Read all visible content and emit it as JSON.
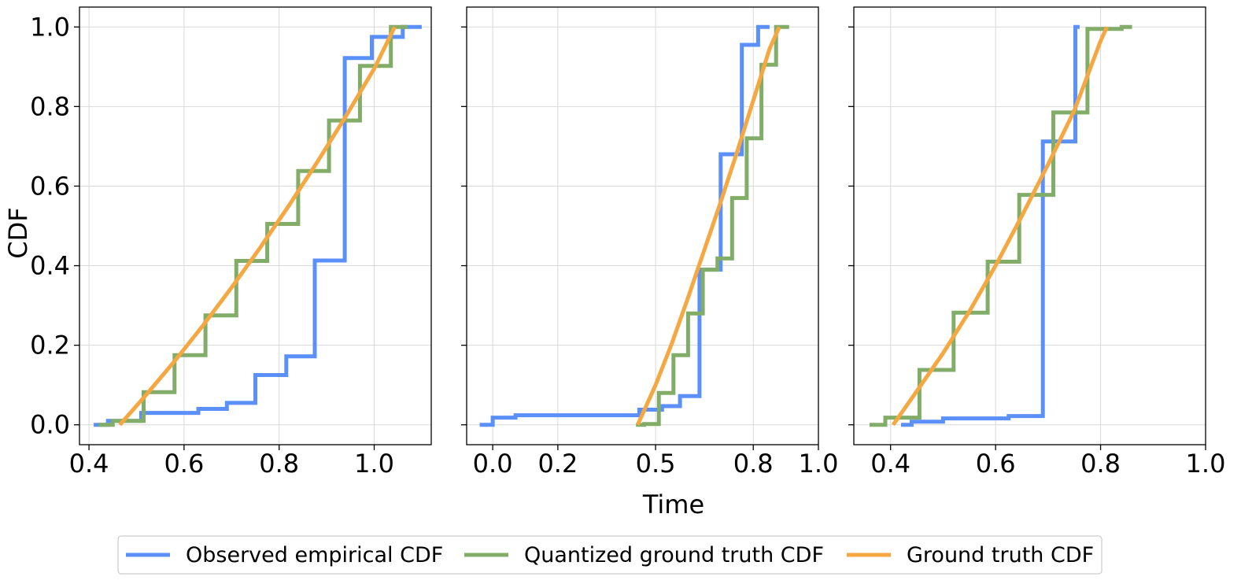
{
  "chart_data": {
    "type": "line",
    "style": "step",
    "xlabel": "Time",
    "ylabel": "CDF",
    "colors": {
      "observed": "#5B8FF9",
      "quantized": "#82AD68",
      "ground_truth": "#F5A742",
      "grid": "#d9d9d9",
      "axis": "#000000"
    },
    "legend": {
      "position": "bottom-center",
      "entries": [
        {
          "key": "observed",
          "label": "Observed empirical CDF"
        },
        {
          "key": "quantized",
          "label": "Quantized ground truth CDF"
        },
        {
          "key": "ground_truth",
          "label": "Ground truth CDF"
        }
      ]
    },
    "panels": [
      {
        "xlim": [
          0.38,
          1.12
        ],
        "ylim": [
          -0.05,
          1.05
        ],
        "xticks": [
          "0.4",
          "0.6",
          "0.8",
          "1.0"
        ],
        "yticks": [
          "0.0",
          "0.2",
          "0.4",
          "0.6",
          "0.8",
          "1.0"
        ],
        "series": [
          {
            "key": "observed",
            "name": "Observed empirical CDF",
            "x": [
              0.41,
              0.44,
              0.51,
              0.63,
              0.69,
              0.75,
              0.815,
              0.875,
              0.938,
              0.995,
              1.06,
              1.1
            ],
            "y": [
              0.0,
              0.01,
              0.03,
              0.04,
              0.055,
              0.125,
              0.172,
              0.413,
              0.922,
              0.975,
              1.0,
              1.0
            ]
          },
          {
            "key": "quantized",
            "name": "Quantized ground truth CDF",
            "x": [
              0.42,
              0.45,
              0.515,
              0.58,
              0.645,
              0.71,
              0.775,
              0.84,
              0.905,
              0.97,
              1.035,
              1.07
            ],
            "y": [
              0.0,
              0.01,
              0.082,
              0.175,
              0.275,
              0.412,
              0.505,
              0.638,
              0.765,
              0.902,
              1.0,
              1.0
            ]
          },
          {
            "key": "ground_truth",
            "name": "Ground truth CDF",
            "x": [
              0.465,
              0.52,
              0.58,
              0.64,
              0.7,
              0.76,
              0.82,
              0.88,
              0.94,
              1.0,
              1.043
            ],
            "y": [
              0.0,
              0.075,
              0.16,
              0.25,
              0.345,
              0.445,
              0.55,
              0.66,
              0.775,
              0.895,
              1.0
            ]
          }
        ]
      },
      {
        "xlim": [
          -0.08,
          1.0
        ],
        "ylim": [
          -0.05,
          1.05
        ],
        "xticks_values": [
          0.0,
          0.2,
          0.5,
          0.8,
          1.0
        ],
        "xticks": [
          "0.0",
          "0.2",
          "0.5",
          "0.8",
          "1.0"
        ],
        "series": [
          {
            "key": "observed",
            "name": "Observed empirical CDF",
            "x": [
              -0.04,
              0.0,
              0.07,
              0.45,
              0.52,
              0.575,
              0.635,
              0.7,
              0.765,
              0.815,
              0.85
            ],
            "y": [
              0.0,
              0.018,
              0.024,
              0.038,
              0.047,
              0.072,
              0.39,
              0.68,
              0.955,
              1.0,
              1.0
            ]
          },
          {
            "key": "quantized",
            "name": "Quantized ground truth CDF",
            "x": [
              0.44,
              0.465,
              0.51,
              0.555,
              0.6,
              0.645,
              0.69,
              0.735,
              0.78,
              0.825,
              0.87,
              0.91
            ],
            "y": [
              0.0,
              0.002,
              0.08,
              0.175,
              0.28,
              0.39,
              0.418,
              0.57,
              0.72,
              0.905,
              1.0,
              1.0
            ]
          },
          {
            "key": "ground_truth",
            "name": "Ground truth CDF",
            "x": [
              0.445,
              0.5,
              0.55,
              0.6,
              0.65,
              0.7,
              0.75,
              0.8,
              0.85,
              0.88
            ],
            "y": [
              0.0,
              0.1,
              0.205,
              0.32,
              0.44,
              0.56,
              0.685,
              0.815,
              0.945,
              1.0
            ]
          }
        ]
      },
      {
        "xlim": [
          0.33,
          1.0
        ],
        "ylim": [
          -0.05,
          1.05
        ],
        "xticks_values": [
          0.4,
          0.6,
          0.8,
          1.0
        ],
        "xticks": [
          "0.4",
          "0.6",
          "0.8",
          "1.0"
        ],
        "series": [
          {
            "key": "observed",
            "name": "Observed empirical CDF",
            "x": [
              0.42,
              0.44,
              0.5,
              0.625,
              0.69,
              0.752,
              0.76
            ],
            "y": [
              0.0,
              0.008,
              0.016,
              0.022,
              0.712,
              1.0,
              1.0
            ]
          },
          {
            "key": "quantized",
            "name": "Quantized ground truth CDF",
            "x": [
              0.36,
              0.39,
              0.455,
              0.52,
              0.585,
              0.645,
              0.71,
              0.775,
              0.84,
              0.86
            ],
            "y": [
              0.0,
              0.018,
              0.138,
              0.282,
              0.41,
              0.578,
              0.785,
              0.995,
              1.0,
              1.0
            ]
          },
          {
            "key": "ground_truth",
            "name": "Ground truth CDF",
            "x": [
              0.405,
              0.45,
              0.5,
              0.55,
              0.6,
              0.65,
              0.7,
              0.75,
              0.8,
              0.812
            ],
            "y": [
              0.0,
              0.085,
              0.18,
              0.285,
              0.4,
              0.525,
              0.655,
              0.79,
              0.965,
              1.0
            ]
          }
        ]
      }
    ]
  }
}
